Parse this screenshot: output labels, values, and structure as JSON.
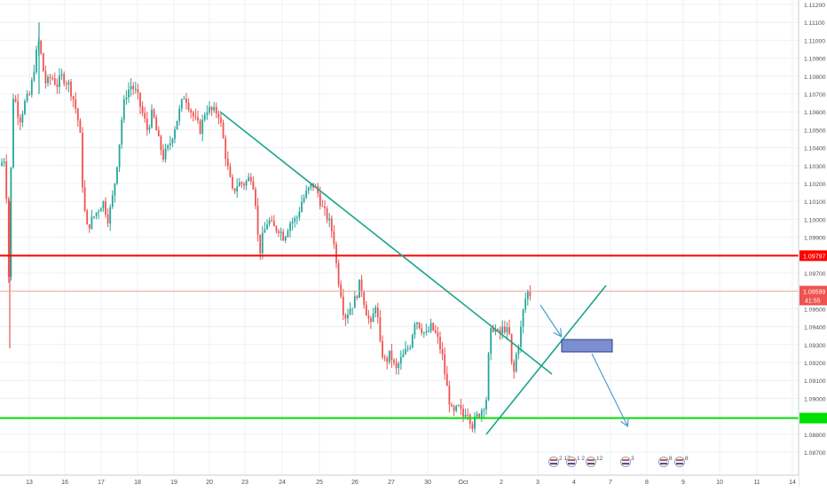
{
  "chart_data": {
    "type": "candlestick",
    "instrument_note": "EUR/USD style hourly candles",
    "x_tick_labels": [
      "13",
      "16",
      "17",
      "18",
      "19",
      "20",
      "23",
      "24",
      "25",
      "26",
      "27",
      "30",
      "Oct",
      "2",
      "3",
      "4",
      "7",
      "8",
      "9",
      "10",
      "11",
      "14"
    ],
    "y_tick_labels": [
      "1.11200",
      "1.11100",
      "1.11000",
      "1.10900",
      "1.10800",
      "1.10700",
      "1.10600",
      "1.10500",
      "1.10400",
      "1.10300",
      "1.10200",
      "1.10100",
      "1.10000",
      "1.09900",
      "1.09700",
      "1.09500",
      "1.09400",
      "1.09300",
      "1.09200",
      "1.09100",
      "1.09000",
      "1.08800",
      "1.08700"
    ],
    "ylim": [
      1.0868,
      1.1123
    ],
    "grid": true,
    "horizontal_levels": [
      {
        "name": "resistance",
        "price": 1.09797,
        "label": "1.09797",
        "color": "#ff0000"
      },
      {
        "name": "support",
        "price": 1.0889,
        "label": "",
        "color": "#00e000"
      }
    ],
    "current_price": {
      "price": 1.09599,
      "label": "1.09599",
      "countdown": "41:55",
      "color": "#ef5350"
    },
    "candle_colors": {
      "up": "#26a69a",
      "down": "#ef5350"
    },
    "drawing_colors": {
      "trendline": "#1aa58a",
      "arrow": "#4a9fd0",
      "box_fill": "#7b8fd0",
      "box_stroke": "#2c3f8a"
    },
    "event_badges": [
      {
        "text": "2 17"
      },
      {
        "text": "1 2"
      },
      {
        "text": "12"
      },
      {
        "text": "3"
      },
      {
        "text": "8"
      },
      {
        "text": "8"
      }
    ]
  }
}
